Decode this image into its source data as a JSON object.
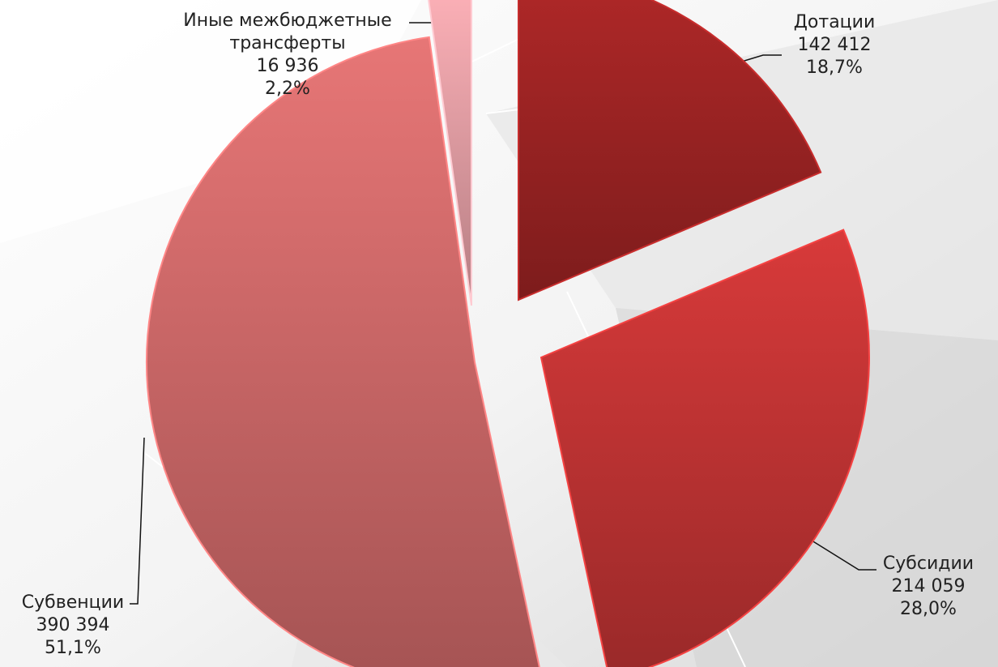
{
  "chart_data": {
    "type": "pie",
    "style": "exploded",
    "categories": [
      "Дотации",
      "Субсидии",
      "Субвенции",
      "Иные межбюджетные трансферты"
    ],
    "values": [
      142412,
      214059,
      390394,
      16936
    ],
    "value_labels": [
      "142 412",
      "214 059",
      "390 394",
      "16 936"
    ],
    "percent_labels": [
      "18,7%",
      "28,0%",
      "51,1%",
      "2,2%"
    ],
    "name_lines": [
      [
        "Дотации"
      ],
      [
        "Субсидии"
      ],
      [
        "Субвенции"
      ],
      [
        "Иные межбюджетные",
        "трансферты"
      ]
    ],
    "colors": [
      "#a02424",
      "#c43535",
      "#d26b6b",
      "#e8a2a8"
    ]
  }
}
